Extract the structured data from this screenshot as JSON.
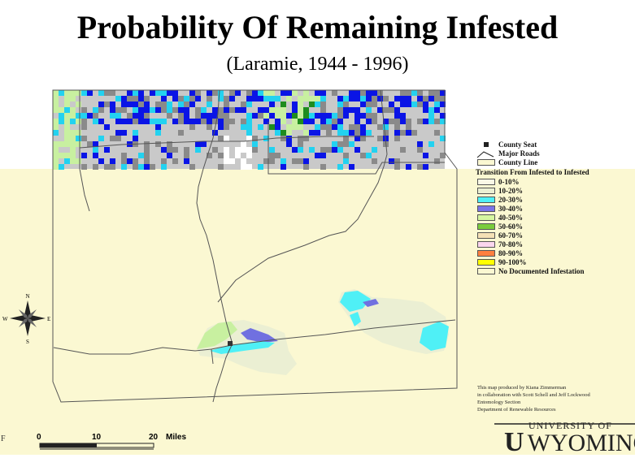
{
  "title": "Probability Of Remaining Infested",
  "subtitle": "(Laramie, 1944 - 1996)",
  "legend": {
    "county_seat": "County Seat",
    "major_roads": "Major Roads",
    "county_line": "County Line",
    "heading": "Transition From Infested to Infested",
    "classes": [
      {
        "label": "0-10%",
        "color": "#fbf8e6"
      },
      {
        "label": "10-20%",
        "color": "#ebefd3"
      },
      {
        "label": "20-30%",
        "color": "#4ff0f6"
      },
      {
        "label": "30-40%",
        "color": "#7b74e8"
      },
      {
        "label": "40-50%",
        "color": "#d6f6a0"
      },
      {
        "label": "50-60%",
        "color": "#7acc3c"
      },
      {
        "label": "60-70%",
        "color": "#f5e1b6"
      },
      {
        "label": "70-80%",
        "color": "#fbd6ee"
      },
      {
        "label": "80-90%",
        "color": "#ff8040"
      },
      {
        "label": "90-100%",
        "color": "#ffff00"
      },
      {
        "label": "No Documented Infestation",
        "color": "#fbf8d2"
      }
    ]
  },
  "compass": {
    "n": "N",
    "s": "S",
    "e": "E",
    "w": "W"
  },
  "scale_bar": {
    "ticks": [
      "0",
      "10",
      "20"
    ],
    "unit": "Miles"
  },
  "credits": [
    "This map produced by Kiana Zimmerman",
    "in collaboration with Scott Schell and Jeff Lockwood",
    "Entomology Section",
    "Department of Renewable Resources"
  ],
  "logo": {
    "top_line": "UNIVERSITY OF",
    "name": "WYOMING",
    "mark": "U"
  },
  "edge_text": "F",
  "colors": {
    "background": "#fbf8d2",
    "grey_dark": "#8a8a8a",
    "grey_light": "#c9c9c9",
    "blue": "#0a14e6",
    "cyan": "#23d2f0",
    "lightgreen": "#c8f0a0",
    "darkgreen": "#1e8c1e",
    "purple": "#7070e0"
  }
}
